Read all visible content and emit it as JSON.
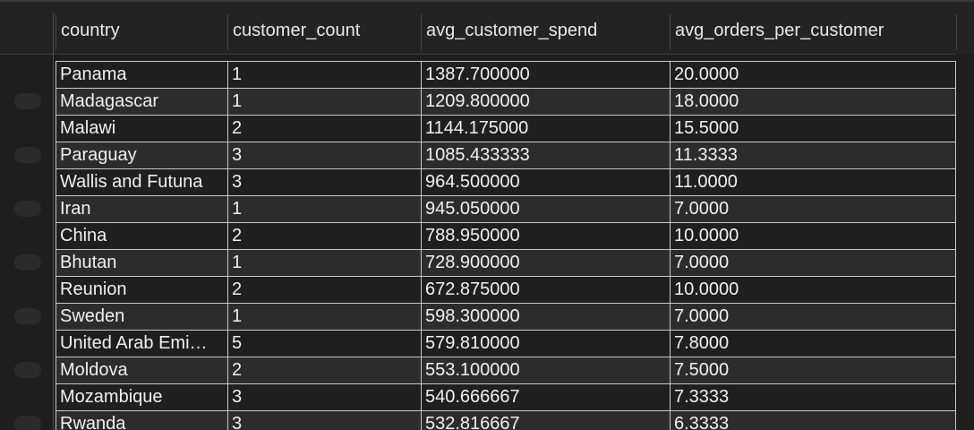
{
  "columns": [
    "country",
    "customer_count",
    "avg_customer_spend",
    "avg_orders_per_customer"
  ],
  "rows": [
    [
      "Panama",
      "1",
      "1387.700000",
      "20.0000"
    ],
    [
      "Madagascar",
      "1",
      "1209.800000",
      "18.0000"
    ],
    [
      "Malawi",
      "2",
      "1144.175000",
      "15.5000"
    ],
    [
      "Paraguay",
      "3",
      "1085.433333",
      "11.3333"
    ],
    [
      "Wallis and Futuna",
      "3",
      "964.500000",
      "11.0000"
    ],
    [
      "Iran",
      "1",
      "945.050000",
      "7.0000"
    ],
    [
      "China",
      "2",
      "788.950000",
      "10.0000"
    ],
    [
      "Bhutan",
      "1",
      "728.900000",
      "7.0000"
    ],
    [
      "Reunion",
      "2",
      "672.875000",
      "10.0000"
    ],
    [
      "Sweden",
      "1",
      "598.300000",
      "7.0000"
    ],
    [
      "United Arab Emi…",
      "5",
      "579.810000",
      "7.8000"
    ],
    [
      "Moldova",
      "2",
      "553.100000",
      "7.5000"
    ],
    [
      "Mozambique",
      "3",
      "540.666667",
      "7.3333"
    ],
    [
      "Rwanda",
      "3",
      "532.816667",
      "6.3333"
    ]
  ]
}
